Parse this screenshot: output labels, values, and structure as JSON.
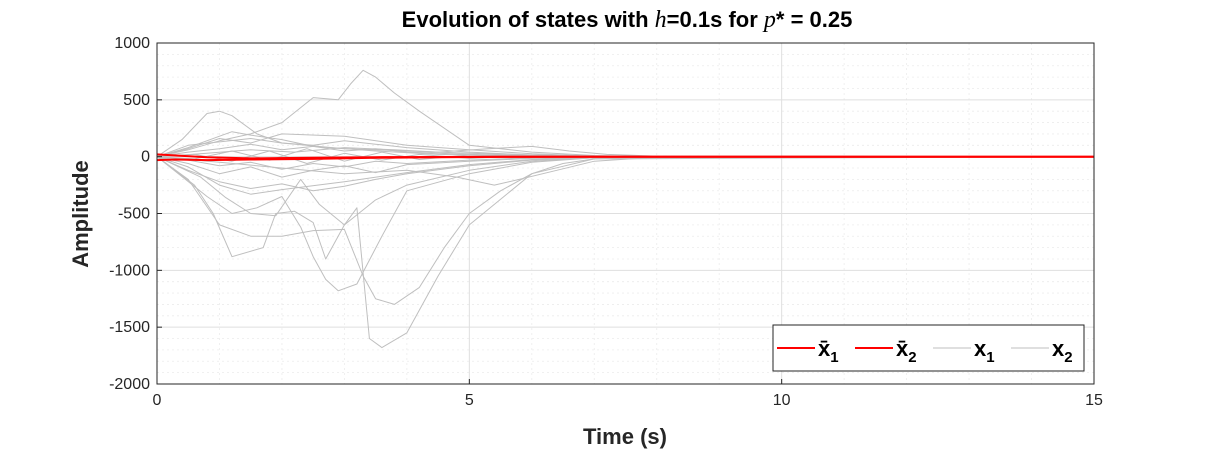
{
  "chart_data": {
    "type": "line",
    "title": {
      "prefix": "Evolution of states with ",
      "var1": "h",
      "mid": "=0.1s for ",
      "var2": "p",
      "suffix": "* = 0.25"
    },
    "xlabel": "Time (s)",
    "ylabel": "Amplitude",
    "xlim": [
      0,
      15
    ],
    "ylim": [
      -2000,
      1000
    ],
    "xticks": [
      0,
      5,
      10,
      15
    ],
    "yticks": [
      -2000,
      -1500,
      -1000,
      -500,
      0,
      500,
      1000
    ],
    "grid": true,
    "minor_grid": true,
    "legend": {
      "placement": "bottom-right",
      "entries": [
        {
          "label": "x̄",
          "sub": "1",
          "color": "#ff0000"
        },
        {
          "label": "x̄",
          "sub": "2",
          "color": "#ff0000"
        },
        {
          "label": "x",
          "sub": "1",
          "color": "#bfbfbf"
        },
        {
          "label": "x",
          "sub": "2",
          "color": "#bfbfbf"
        }
      ]
    },
    "colors": {
      "mean": "#ff0000",
      "sample": "#bfbfbf",
      "axis": "#262626",
      "grid": "#dfdfdf"
    },
    "series": [
      {
        "x": [
          0,
          0.5,
          1,
          1.5,
          2,
          2.5,
          2.9,
          3.1,
          3.3,
          3.5,
          3.8,
          4.2,
          5,
          6,
          7,
          8,
          15
        ],
        "y": [
          0,
          60,
          140,
          200,
          300,
          520,
          500,
          640,
          760,
          700,
          560,
          400,
          100,
          40,
          10,
          0,
          0
        ]
      },
      {
        "x": [
          0,
          0.4,
          0.8,
          1.0,
          1.2,
          1.6,
          2.0,
          2.8,
          3.5,
          4.5,
          5.5,
          7,
          8,
          15
        ],
        "y": [
          0,
          150,
          380,
          400,
          360,
          200,
          120,
          80,
          50,
          20,
          10,
          5,
          0,
          0
        ]
      },
      {
        "x": [
          0,
          0.5,
          1,
          1.2,
          1.5,
          2,
          2.5,
          3,
          4,
          5,
          6,
          7,
          15
        ],
        "y": [
          0,
          80,
          180,
          220,
          190,
          150,
          90,
          70,
          50,
          30,
          15,
          5,
          0
        ]
      },
      {
        "x": [
          0,
          0.5,
          1.0,
          1.5,
          2.0,
          2.5,
          3.0,
          3.3,
          3.5,
          3.8,
          4.2,
          4.6,
          5.0,
          5.5,
          6.0,
          6.5,
          7,
          8,
          15
        ],
        "y": [
          0,
          -200,
          -600,
          -700,
          -700,
          -650,
          -640,
          -1050,
          -1250,
          -1300,
          -1150,
          -800,
          -500,
          -300,
          -150,
          -60,
          -20,
          0,
          0
        ]
      },
      {
        "x": [
          0,
          0.6,
          0.9,
          1.2,
          1.7,
          1.9,
          2.2,
          2.5,
          2.7,
          3.0,
          3.2,
          3.4,
          3.6,
          4.0,
          4.5,
          5.0,
          6,
          7,
          15
        ],
        "y": [
          0,
          -250,
          -500,
          -880,
          -800,
          -500,
          -480,
          -580,
          -900,
          -600,
          -450,
          -1600,
          -1680,
          -1550,
          -1050,
          -600,
          -150,
          -20,
          0
        ]
      },
      {
        "x": [
          0,
          0.8,
          1.2,
          1.6,
          2.0,
          2.3,
          2.5,
          2.7,
          2.9,
          3.2,
          3.6,
          4,
          5,
          6,
          7,
          15
        ],
        "y": [
          0,
          -350,
          -500,
          -450,
          -350,
          -620,
          -880,
          -1080,
          -1180,
          -1120,
          -700,
          -300,
          -150,
          -50,
          -10,
          0
        ]
      },
      {
        "x": [
          0,
          0.7,
          1.1,
          1.5,
          1.9,
          2.3,
          2.6,
          3,
          3.5,
          4,
          5,
          6,
          7,
          15
        ],
        "y": [
          0,
          -180,
          -360,
          -500,
          -520,
          -200,
          -420,
          -600,
          -380,
          -250,
          -120,
          -40,
          -10,
          0
        ]
      },
      {
        "x": [
          0,
          0.5,
          1.0,
          1.5,
          2.0,
          2.5,
          3.0,
          3.5,
          4.0,
          5.0,
          6.0,
          7.0,
          15
        ],
        "y": [
          0,
          -120,
          -220,
          -280,
          -240,
          -300,
          -260,
          -200,
          -150,
          -80,
          -30,
          -10,
          0
        ]
      },
      {
        "x": [
          0,
          0.5,
          1.0,
          1.5,
          2.0,
          2.5,
          3.0,
          3.5,
          4.0,
          5.0,
          6.0,
          7.0,
          15
        ],
        "y": [
          0,
          100,
          130,
          160,
          120,
          100,
          140,
          110,
          80,
          40,
          15,
          5,
          0
        ]
      },
      {
        "x": [
          0,
          0.5,
          1.0,
          1.5,
          2.0,
          2.5,
          3.0,
          3.5,
          4.0,
          5.0,
          6.0,
          7.0,
          15
        ],
        "y": [
          0,
          -60,
          -150,
          -90,
          -180,
          -120,
          -80,
          -140,
          -70,
          -40,
          -15,
          -5,
          0
        ]
      },
      {
        "x": [
          0,
          0.5,
          1.0,
          1.5,
          2.0,
          2.5,
          3.0,
          3.5,
          4.0,
          5.0,
          6.0,
          7.0,
          15
        ],
        "y": [
          0,
          40,
          70,
          110,
          60,
          90,
          50,
          70,
          40,
          20,
          8,
          3,
          0
        ]
      },
      {
        "x": [
          0,
          0.5,
          1.0,
          1.5,
          2.0,
          2.5,
          3.0,
          3.5,
          4.0,
          5.0,
          6.0,
          7.0,
          15
        ],
        "y": [
          0,
          -30,
          -80,
          -50,
          -110,
          -60,
          -90,
          -40,
          -60,
          -30,
          -10,
          -3,
          0
        ]
      },
      {
        "x": [
          0,
          0.8,
          1.5,
          2.2,
          3.0,
          3.8,
          4.5,
          5.3,
          6.0,
          6.6,
          7.2,
          8,
          15
        ],
        "y": [
          0,
          30,
          60,
          40,
          80,
          60,
          40,
          70,
          90,
          50,
          20,
          5,
          0
        ]
      },
      {
        "x": [
          0,
          1.0,
          2.0,
          3.0,
          4.0,
          4.8,
          5.4,
          5.8,
          6.4,
          7.0,
          8,
          15
        ],
        "y": [
          0,
          -50,
          -100,
          -150,
          -120,
          -180,
          -250,
          -200,
          -120,
          -40,
          -5,
          0
        ]
      },
      {
        "x": [
          0,
          0.5,
          1,
          1.5,
          2,
          3,
          4,
          5,
          6,
          7,
          15
        ],
        "y": [
          0,
          70,
          160,
          120,
          200,
          180,
          100,
          60,
          25,
          5,
          0
        ]
      },
      {
        "x": [
          0,
          0.5,
          1,
          1.5,
          2,
          3,
          4,
          5,
          6,
          7,
          15
        ],
        "y": [
          0,
          -90,
          -250,
          -330,
          -290,
          -220,
          -140,
          -70,
          -25,
          -5,
          0
        ]
      },
      {
        "x": [
          0,
          0.6,
          1.2,
          1.8,
          2.4,
          3.0,
          3.6,
          4.2,
          5.0,
          6.0,
          7.0,
          15
        ],
        "y": [
          0,
          20,
          -40,
          50,
          -60,
          30,
          -30,
          20,
          -15,
          8,
          0,
          0
        ]
      },
      {
        "x": [
          0,
          0.6,
          1.2,
          1.8,
          2.4,
          3.0,
          3.6,
          4.2,
          5.0,
          6.0,
          7.0,
          15
        ],
        "y": [
          0,
          -20,
          50,
          -30,
          70,
          -40,
          40,
          -25,
          15,
          -8,
          0,
          0
        ]
      }
    ],
    "mean_series": [
      {
        "x": [
          0,
          0.3,
          0.8,
          1.5,
          2.5,
          3.5,
          4.5,
          5.5,
          6.5,
          8,
          15
        ],
        "y": [
          20,
          10,
          -5,
          -15,
          -10,
          -5,
          -3,
          -1,
          0,
          0,
          0
        ]
      },
      {
        "x": [
          0,
          0.3,
          0.8,
          1.5,
          2.5,
          3.5,
          4.5,
          5.5,
          6.5,
          8,
          15
        ],
        "y": [
          -30,
          -25,
          -30,
          -25,
          -20,
          -10,
          -5,
          -2,
          0,
          0,
          0
        ]
      }
    ]
  }
}
